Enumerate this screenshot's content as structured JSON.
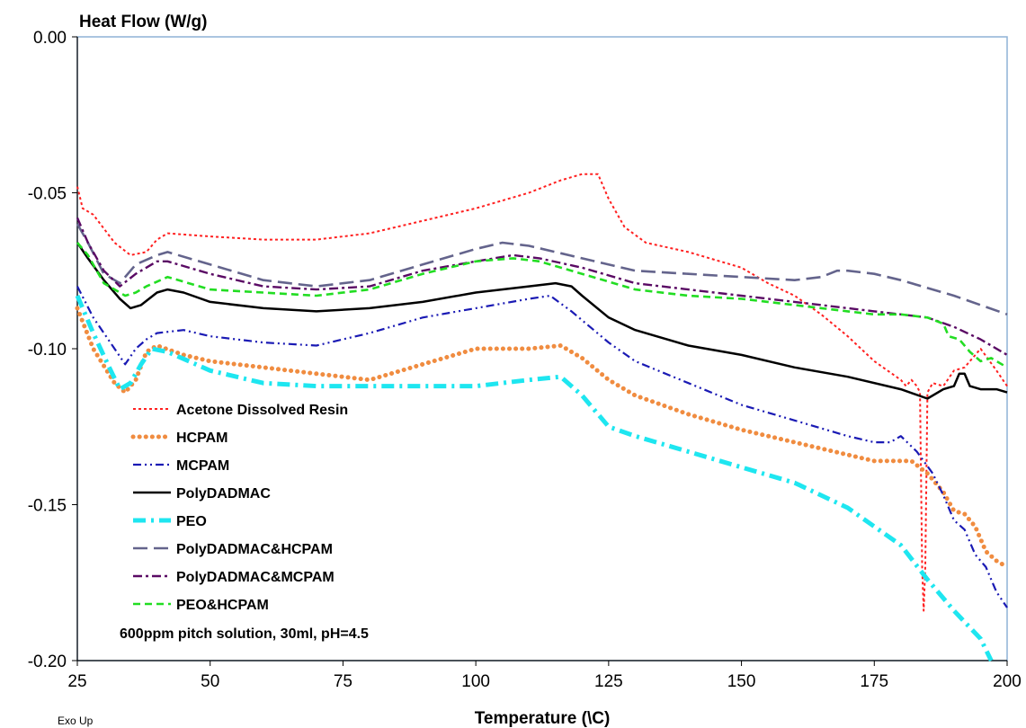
{
  "chart_data": {
    "type": "line",
    "ylabel": "Heat Flow (W/g)",
    "xlabel": "Temperature (\\C)",
    "corner_label": "Exo Up",
    "annotation": "600ppm pitch solution, 30ml, pH=4.5",
    "xlim": [
      25,
      200
    ],
    "ylim": [
      -0.2,
      0.0
    ],
    "xticks": [
      25,
      50,
      75,
      100,
      125,
      150,
      175,
      200
    ],
    "yticks": [
      0.0,
      -0.05,
      -0.1,
      -0.15,
      -0.2
    ],
    "ytick_labels": [
      "0.00",
      "-0.05",
      "-0.10",
      "-0.15",
      "-0.20"
    ],
    "grid": false,
    "legend_position": "lower-left",
    "series": [
      {
        "name": "Acetone Dissolved Resin",
        "color": "#ff2020",
        "dash": "dotted",
        "points": [
          [
            25,
            -0.048
          ],
          [
            26,
            -0.055
          ],
          [
            28,
            -0.057
          ],
          [
            32,
            -0.066
          ],
          [
            35,
            -0.07
          ],
          [
            38,
            -0.069
          ],
          [
            40,
            -0.065
          ],
          [
            42,
            -0.063
          ],
          [
            50,
            -0.064
          ],
          [
            60,
            -0.065
          ],
          [
            70,
            -0.065
          ],
          [
            80,
            -0.063
          ],
          [
            90,
            -0.059
          ],
          [
            100,
            -0.055
          ],
          [
            110,
            -0.05
          ],
          [
            116,
            -0.046
          ],
          [
            120,
            -0.044
          ],
          [
            123,
            -0.044
          ],
          [
            125,
            -0.052
          ],
          [
            128,
            -0.061
          ],
          [
            132,
            -0.066
          ],
          [
            140,
            -0.069
          ],
          [
            150,
            -0.074
          ],
          [
            155,
            -0.079
          ],
          [
            160,
            -0.083
          ],
          [
            165,
            -0.089
          ],
          [
            170,
            -0.096
          ],
          [
            175,
            -0.104
          ],
          [
            180,
            -0.11
          ],
          [
            181,
            -0.112
          ],
          [
            182,
            -0.11
          ],
          [
            183,
            -0.112
          ],
          [
            183.6,
            -0.114
          ],
          [
            184,
            -0.17
          ],
          [
            184.3,
            -0.184
          ],
          [
            184.6,
            -0.17
          ],
          [
            185,
            -0.114
          ],
          [
            186,
            -0.111
          ],
          [
            188,
            -0.112
          ],
          [
            190,
            -0.107
          ],
          [
            192,
            -0.106
          ],
          [
            195,
            -0.1
          ],
          [
            198,
            -0.107
          ],
          [
            200,
            -0.112
          ]
        ]
      },
      {
        "name": "HCPAM",
        "color": "#f08c40",
        "dash": "dot-heavy",
        "points": [
          [
            25,
            -0.087
          ],
          [
            28,
            -0.1
          ],
          [
            32,
            -0.111
          ],
          [
            34,
            -0.114
          ],
          [
            36,
            -0.11
          ],
          [
            38,
            -0.101
          ],
          [
            40,
            -0.099
          ],
          [
            45,
            -0.102
          ],
          [
            50,
            -0.104
          ],
          [
            60,
            -0.106
          ],
          [
            70,
            -0.108
          ],
          [
            80,
            -0.11
          ],
          [
            90,
            -0.105
          ],
          [
            100,
            -0.1
          ],
          [
            110,
            -0.1
          ],
          [
            116,
            -0.099
          ],
          [
            120,
            -0.103
          ],
          [
            125,
            -0.11
          ],
          [
            130,
            -0.115
          ],
          [
            140,
            -0.121
          ],
          [
            150,
            -0.126
          ],
          [
            160,
            -0.13
          ],
          [
            170,
            -0.134
          ],
          [
            175,
            -0.136
          ],
          [
            180,
            -0.136
          ],
          [
            182,
            -0.136
          ],
          [
            185,
            -0.14
          ],
          [
            188,
            -0.146
          ],
          [
            190,
            -0.152
          ],
          [
            192,
            -0.153
          ],
          [
            194,
            -0.157
          ],
          [
            196,
            -0.165
          ],
          [
            198,
            -0.168
          ],
          [
            200,
            -0.17
          ]
        ]
      },
      {
        "name": "MCPAM",
        "color": "#1a1ab4",
        "dash": "dash-dot-dot",
        "points": [
          [
            25,
            -0.08
          ],
          [
            28,
            -0.09
          ],
          [
            32,
            -0.1
          ],
          [
            34,
            -0.105
          ],
          [
            36,
            -0.1
          ],
          [
            38,
            -0.097
          ],
          [
            40,
            -0.095
          ],
          [
            45,
            -0.094
          ],
          [
            50,
            -0.096
          ],
          [
            60,
            -0.098
          ],
          [
            70,
            -0.099
          ],
          [
            80,
            -0.095
          ],
          [
            90,
            -0.09
          ],
          [
            100,
            -0.087
          ],
          [
            110,
            -0.084
          ],
          [
            114,
            -0.083
          ],
          [
            118,
            -0.088
          ],
          [
            125,
            -0.098
          ],
          [
            130,
            -0.104
          ],
          [
            140,
            -0.111
          ],
          [
            150,
            -0.118
          ],
          [
            160,
            -0.123
          ],
          [
            170,
            -0.128
          ],
          [
            175,
            -0.13
          ],
          [
            178,
            -0.13
          ],
          [
            180,
            -0.128
          ],
          [
            183,
            -0.133
          ],
          [
            186,
            -0.14
          ],
          [
            188,
            -0.147
          ],
          [
            190,
            -0.155
          ],
          [
            192,
            -0.158
          ],
          [
            194,
            -0.166
          ],
          [
            196,
            -0.17
          ],
          [
            198,
            -0.178
          ],
          [
            200,
            -0.183
          ]
        ]
      },
      {
        "name": "PolyDADMAC",
        "color": "#000000",
        "dash": "solid",
        "points": [
          [
            25,
            -0.066
          ],
          [
            27,
            -0.071
          ],
          [
            30,
            -0.078
          ],
          [
            33,
            -0.084
          ],
          [
            35,
            -0.087
          ],
          [
            37,
            -0.086
          ],
          [
            40,
            -0.082
          ],
          [
            42,
            -0.081
          ],
          [
            45,
            -0.082
          ],
          [
            50,
            -0.085
          ],
          [
            60,
            -0.087
          ],
          [
            70,
            -0.088
          ],
          [
            80,
            -0.087
          ],
          [
            90,
            -0.085
          ],
          [
            100,
            -0.082
          ],
          [
            110,
            -0.08
          ],
          [
            115,
            -0.079
          ],
          [
            118,
            -0.08
          ],
          [
            120,
            -0.083
          ],
          [
            125,
            -0.09
          ],
          [
            130,
            -0.094
          ],
          [
            140,
            -0.099
          ],
          [
            150,
            -0.102
          ],
          [
            160,
            -0.106
          ],
          [
            170,
            -0.109
          ],
          [
            180,
            -0.113
          ],
          [
            185,
            -0.116
          ],
          [
            188,
            -0.113
          ],
          [
            190,
            -0.112
          ],
          [
            191,
            -0.108
          ],
          [
            192,
            -0.108
          ],
          [
            193,
            -0.112
          ],
          [
            195,
            -0.113
          ],
          [
            198,
            -0.113
          ],
          [
            200,
            -0.114
          ]
        ]
      },
      {
        "name": "PEO",
        "color": "#1ee6f0",
        "dash": "dash-dot-heavy",
        "points": [
          [
            25,
            -0.083
          ],
          [
            28,
            -0.095
          ],
          [
            31,
            -0.106
          ],
          [
            33,
            -0.113
          ],
          [
            35,
            -0.111
          ],
          [
            37,
            -0.105
          ],
          [
            39,
            -0.1
          ],
          [
            42,
            -0.101
          ],
          [
            50,
            -0.107
          ],
          [
            60,
            -0.111
          ],
          [
            70,
            -0.112
          ],
          [
            80,
            -0.112
          ],
          [
            90,
            -0.112
          ],
          [
            100,
            -0.112
          ],
          [
            110,
            -0.11
          ],
          [
            116,
            -0.109
          ],
          [
            120,
            -0.115
          ],
          [
            125,
            -0.125
          ],
          [
            130,
            -0.128
          ],
          [
            140,
            -0.133
          ],
          [
            150,
            -0.138
          ],
          [
            160,
            -0.143
          ],
          [
            170,
            -0.151
          ],
          [
            180,
            -0.163
          ],
          [
            185,
            -0.174
          ],
          [
            190,
            -0.184
          ],
          [
            195,
            -0.193
          ],
          [
            197,
            -0.2
          ]
        ]
      },
      {
        "name": "PolyDADMAC&HCPAM",
        "color": "#64648c",
        "dash": "long-dash",
        "points": [
          [
            25,
            -0.06
          ],
          [
            27,
            -0.066
          ],
          [
            30,
            -0.076
          ],
          [
            33,
            -0.079
          ],
          [
            36,
            -0.073
          ],
          [
            40,
            -0.07
          ],
          [
            42,
            -0.069
          ],
          [
            50,
            -0.073
          ],
          [
            60,
            -0.078
          ],
          [
            70,
            -0.08
          ],
          [
            80,
            -0.078
          ],
          [
            90,
            -0.073
          ],
          [
            100,
            -0.068
          ],
          [
            105,
            -0.066
          ],
          [
            110,
            -0.067
          ],
          [
            115,
            -0.069
          ],
          [
            120,
            -0.071
          ],
          [
            130,
            -0.075
          ],
          [
            140,
            -0.076
          ],
          [
            150,
            -0.077
          ],
          [
            160,
            -0.078
          ],
          [
            165,
            -0.077
          ],
          [
            168,
            -0.075
          ],
          [
            170,
            -0.075
          ],
          [
            175,
            -0.076
          ],
          [
            180,
            -0.078
          ],
          [
            190,
            -0.083
          ],
          [
            195,
            -0.086
          ],
          [
            200,
            -0.089
          ]
        ]
      },
      {
        "name": "PolyDADMAC&MCPAM",
        "color": "#5a0a64",
        "dash": "dash-dot",
        "points": [
          [
            25,
            -0.058
          ],
          [
            27,
            -0.066
          ],
          [
            30,
            -0.075
          ],
          [
            33,
            -0.08
          ],
          [
            36,
            -0.076
          ],
          [
            40,
            -0.072
          ],
          [
            42,
            -0.072
          ],
          [
            50,
            -0.076
          ],
          [
            60,
            -0.08
          ],
          [
            70,
            -0.081
          ],
          [
            80,
            -0.08
          ],
          [
            90,
            -0.075
          ],
          [
            100,
            -0.072
          ],
          [
            107,
            -0.07
          ],
          [
            112,
            -0.071
          ],
          [
            120,
            -0.074
          ],
          [
            130,
            -0.079
          ],
          [
            140,
            -0.081
          ],
          [
            150,
            -0.083
          ],
          [
            160,
            -0.085
          ],
          [
            170,
            -0.087
          ],
          [
            175,
            -0.088
          ],
          [
            180,
            -0.089
          ],
          [
            185,
            -0.09
          ],
          [
            190,
            -0.093
          ],
          [
            195,
            -0.097
          ],
          [
            200,
            -0.102
          ]
        ]
      },
      {
        "name": "PEO&HCPAM",
        "color": "#22dd22",
        "dash": "dashed",
        "points": [
          [
            25,
            -0.066
          ],
          [
            27,
            -0.07
          ],
          [
            30,
            -0.079
          ],
          [
            34,
            -0.083
          ],
          [
            36,
            -0.082
          ],
          [
            38,
            -0.08
          ],
          [
            42,
            -0.077
          ],
          [
            50,
            -0.081
          ],
          [
            60,
            -0.082
          ],
          [
            70,
            -0.083
          ],
          [
            80,
            -0.081
          ],
          [
            90,
            -0.076
          ],
          [
            100,
            -0.072
          ],
          [
            107,
            -0.071
          ],
          [
            112,
            -0.072
          ],
          [
            120,
            -0.076
          ],
          [
            130,
            -0.081
          ],
          [
            140,
            -0.083
          ],
          [
            150,
            -0.084
          ],
          [
            160,
            -0.086
          ],
          [
            170,
            -0.088
          ],
          [
            175,
            -0.089
          ],
          [
            180,
            -0.089
          ],
          [
            185,
            -0.09
          ],
          [
            188,
            -0.092
          ],
          [
            189,
            -0.096
          ],
          [
            191,
            -0.097
          ],
          [
            193,
            -0.101
          ],
          [
            195,
            -0.104
          ],
          [
            197,
            -0.103
          ],
          [
            200,
            -0.106
          ]
        ]
      }
    ]
  }
}
